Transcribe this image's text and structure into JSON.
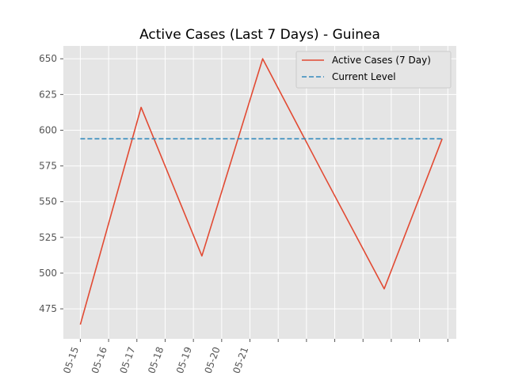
{
  "chart_data": {
    "type": "line",
    "title": "Active Cases (Last 7 Days) - Guinea",
    "xlabel": "",
    "ylabel": "",
    "x_tick_labels": [
      "05-15",
      "05-16",
      "05-17",
      "05-18",
      "05-19",
      "05-20",
      "05-21"
    ],
    "xlim": [
      -0.6,
      13.3
    ],
    "ylim": [
      454,
      659
    ],
    "y_ticks": [
      475,
      500,
      525,
      550,
      575,
      600,
      625,
      650
    ],
    "grid": true,
    "legend_position": "top-right",
    "series": [
      {
        "name": "Active Cases (7 Day)",
        "style": "solid",
        "color": "#e24a33",
        "points": [
          {
            "x": 0,
            "y": 464
          },
          {
            "x": 2.15,
            "y": 616
          },
          {
            "x": 4.3,
            "y": 512
          },
          {
            "x": 6.45,
            "y": 650
          },
          {
            "x": 8.6,
            "y": 569
          },
          {
            "x": 10.75,
            "y": 489
          },
          {
            "x": 12.8,
            "y": 594
          }
        ]
      },
      {
        "name": "Current Level",
        "style": "dashed",
        "color": "#348abd",
        "points": [
          {
            "x": 0,
            "y": 594
          },
          {
            "x": 12.8,
            "y": 594
          }
        ]
      }
    ]
  }
}
